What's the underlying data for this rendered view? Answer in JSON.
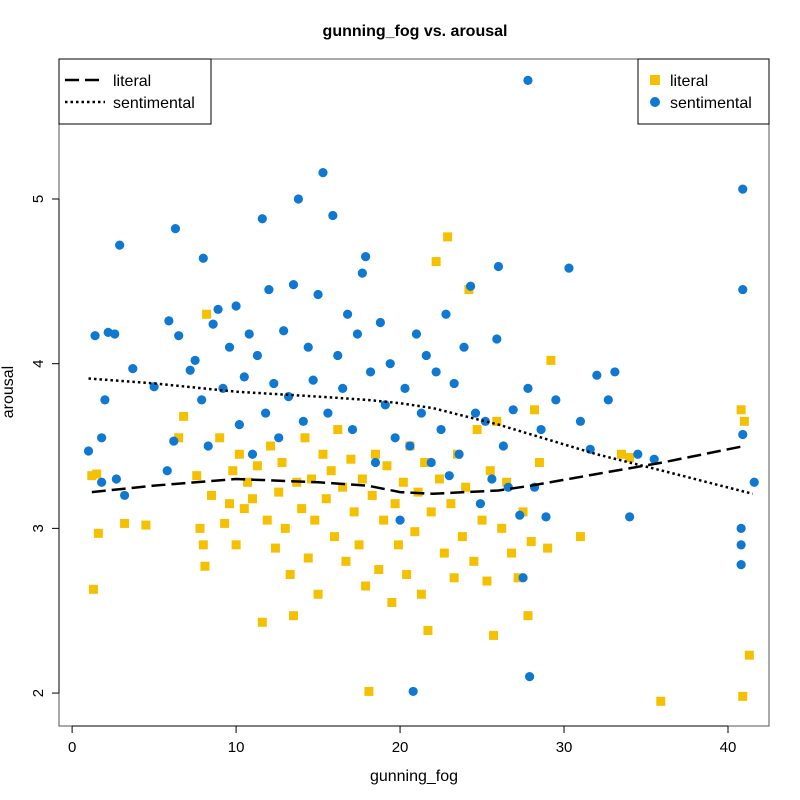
{
  "chart_data": {
    "type": "scatter",
    "title": "gunning_fog vs. arousal",
    "xlabel": "gunning_fog",
    "ylabel": "arousal",
    "xlim": [
      -0.8,
      42.5
    ],
    "ylim": [
      1.8,
      5.85
    ],
    "x_ticks": [
      0,
      10,
      20,
      30,
      40
    ],
    "y_ticks": [
      2,
      3,
      4,
      5
    ],
    "grid": false,
    "colors": {
      "literal": "#f5c000",
      "sentimental": "#0f78d2",
      "axis": "#000000",
      "frame": "#555555"
    },
    "legend_lines": {
      "placement": "top-left",
      "entries": [
        {
          "label": "literal",
          "style": "dashed"
        },
        {
          "label": "sentimental",
          "style": "dotted"
        }
      ]
    },
    "legend_points": {
      "placement": "top-right",
      "entries": [
        {
          "label": "literal",
          "marker": "square",
          "color": "#f5c000"
        },
        {
          "label": "sentimental",
          "marker": "circle",
          "color": "#0f78d2"
        }
      ]
    },
    "series": [
      {
        "name": "literal",
        "marker": "square",
        "color": "#f5c000",
        "points": [
          [
            1.2,
            3.32
          ],
          [
            1.3,
            2.63
          ],
          [
            1.5,
            3.33
          ],
          [
            1.6,
            2.97
          ],
          [
            3.2,
            3.03
          ],
          [
            4.5,
            3.02
          ],
          [
            6.5,
            3.55
          ],
          [
            6.8,
            3.68
          ],
          [
            7.6,
            3.32
          ],
          [
            7.8,
            3.0
          ],
          [
            8.0,
            2.9
          ],
          [
            8.1,
            2.77
          ],
          [
            8.2,
            4.3
          ],
          [
            8.5,
            3.2
          ],
          [
            9.0,
            3.55
          ],
          [
            9.3,
            3.03
          ],
          [
            9.6,
            3.15
          ],
          [
            9.8,
            3.35
          ],
          [
            10.0,
            2.9
          ],
          [
            10.2,
            3.45
          ],
          [
            10.5,
            3.12
          ],
          [
            10.7,
            3.28
          ],
          [
            11.0,
            3.18
          ],
          [
            11.3,
            3.38
          ],
          [
            11.6,
            2.43
          ],
          [
            11.9,
            3.05
          ],
          [
            12.1,
            3.5
          ],
          [
            12.4,
            2.88
          ],
          [
            12.6,
            3.22
          ],
          [
            12.8,
            3.4
          ],
          [
            13.0,
            3.0
          ],
          [
            13.3,
            2.72
          ],
          [
            13.5,
            2.47
          ],
          [
            13.7,
            3.28
          ],
          [
            14.0,
            3.12
          ],
          [
            14.2,
            3.55
          ],
          [
            14.4,
            2.82
          ],
          [
            14.6,
            3.3
          ],
          [
            14.8,
            3.05
          ],
          [
            15.0,
            2.6
          ],
          [
            15.3,
            3.45
          ],
          [
            15.5,
            3.18
          ],
          [
            15.8,
            3.35
          ],
          [
            16.0,
            2.95
          ],
          [
            16.2,
            3.6
          ],
          [
            16.5,
            3.25
          ],
          [
            16.7,
            2.8
          ],
          [
            17.0,
            3.42
          ],
          [
            17.2,
            3.1
          ],
          [
            17.5,
            2.9
          ],
          [
            17.7,
            3.3
          ],
          [
            17.9,
            2.65
          ],
          [
            18.1,
            2.01
          ],
          [
            18.3,
            3.2
          ],
          [
            18.5,
            3.45
          ],
          [
            18.7,
            2.75
          ],
          [
            19.0,
            3.05
          ],
          [
            19.2,
            3.38
          ],
          [
            19.5,
            2.55
          ],
          [
            19.7,
            3.15
          ],
          [
            19.9,
            2.9
          ],
          [
            20.2,
            3.28
          ],
          [
            20.4,
            2.72
          ],
          [
            20.6,
            3.5
          ],
          [
            20.9,
            2.98
          ],
          [
            21.1,
            3.22
          ],
          [
            21.3,
            2.6
          ],
          [
            21.5,
            3.4
          ],
          [
            21.7,
            2.38
          ],
          [
            21.9,
            3.1
          ],
          [
            22.2,
            4.62
          ],
          [
            22.4,
            3.3
          ],
          [
            22.7,
            2.85
          ],
          [
            22.9,
            4.77
          ],
          [
            23.1,
            3.15
          ],
          [
            23.3,
            2.7
          ],
          [
            23.5,
            3.45
          ],
          [
            23.8,
            2.95
          ],
          [
            24.0,
            3.25
          ],
          [
            24.2,
            4.45
          ],
          [
            24.5,
            2.8
          ],
          [
            24.7,
            3.6
          ],
          [
            25.0,
            3.05
          ],
          [
            25.3,
            2.68
          ],
          [
            25.5,
            3.35
          ],
          [
            25.7,
            2.35
          ],
          [
            25.9,
            3.65
          ],
          [
            26.2,
            3.0
          ],
          [
            26.5,
            3.28
          ],
          [
            26.8,
            2.85
          ],
          [
            27.2,
            2.7
          ],
          [
            27.5,
            3.1
          ],
          [
            27.8,
            2.47
          ],
          [
            28.0,
            2.92
          ],
          [
            28.2,
            3.72
          ],
          [
            28.5,
            3.4
          ],
          [
            29.0,
            2.88
          ],
          [
            29.2,
            4.02
          ],
          [
            31.0,
            2.95
          ],
          [
            33.5,
            3.45
          ],
          [
            34.0,
            3.43
          ],
          [
            35.9,
            1.95
          ],
          [
            40.8,
            3.72
          ],
          [
            40.9,
            1.98
          ],
          [
            41.0,
            3.65
          ],
          [
            41.3,
            2.23
          ]
        ]
      },
      {
        "name": "sentimental",
        "marker": "circle",
        "color": "#0f78d2",
        "points": [
          [
            1.0,
            3.47
          ],
          [
            1.4,
            4.17
          ],
          [
            1.8,
            3.28
          ],
          [
            1.8,
            3.55
          ],
          [
            2.0,
            3.78
          ],
          [
            2.2,
            4.19
          ],
          [
            2.6,
            4.18
          ],
          [
            2.7,
            3.3
          ],
          [
            2.9,
            4.72
          ],
          [
            3.2,
            3.2
          ],
          [
            3.7,
            3.97
          ],
          [
            5.0,
            3.86
          ],
          [
            5.8,
            3.35
          ],
          [
            5.9,
            4.26
          ],
          [
            6.2,
            3.53
          ],
          [
            6.3,
            4.82
          ],
          [
            6.5,
            4.17
          ],
          [
            7.2,
            3.96
          ],
          [
            7.5,
            4.02
          ],
          [
            7.9,
            3.78
          ],
          [
            8.0,
            4.64
          ],
          [
            8.3,
            3.5
          ],
          [
            8.6,
            4.24
          ],
          [
            8.9,
            4.33
          ],
          [
            9.2,
            3.85
          ],
          [
            9.6,
            4.1
          ],
          [
            10.0,
            4.35
          ],
          [
            10.2,
            3.63
          ],
          [
            10.5,
            3.92
          ],
          [
            10.8,
            4.18
          ],
          [
            11.0,
            3.45
          ],
          [
            11.3,
            4.05
          ],
          [
            11.6,
            4.88
          ],
          [
            11.8,
            3.7
          ],
          [
            12.0,
            4.45
          ],
          [
            12.3,
            3.88
          ],
          [
            12.6,
            3.55
          ],
          [
            12.9,
            4.2
          ],
          [
            13.2,
            3.8
          ],
          [
            13.5,
            4.48
          ],
          [
            13.8,
            5.0
          ],
          [
            14.1,
            3.65
          ],
          [
            14.4,
            4.1
          ],
          [
            14.7,
            3.9
          ],
          [
            15.0,
            4.42
          ],
          [
            15.3,
            5.16
          ],
          [
            15.6,
            3.7
          ],
          [
            15.9,
            4.9
          ],
          [
            16.2,
            4.05
          ],
          [
            16.5,
            3.85
          ],
          [
            16.8,
            4.3
          ],
          [
            17.1,
            3.6
          ],
          [
            17.4,
            4.18
          ],
          [
            17.7,
            4.55
          ],
          [
            17.9,
            4.65
          ],
          [
            18.2,
            3.95
          ],
          [
            18.5,
            3.4
          ],
          [
            18.8,
            4.25
          ],
          [
            19.1,
            3.75
          ],
          [
            19.4,
            4.0
          ],
          [
            19.7,
            3.55
          ],
          [
            20.0,
            3.05
          ],
          [
            20.3,
            3.85
          ],
          [
            20.6,
            3.5
          ],
          [
            20.8,
            2.01
          ],
          [
            21.0,
            4.18
          ],
          [
            21.3,
            3.7
          ],
          [
            21.6,
            4.05
          ],
          [
            21.9,
            3.4
          ],
          [
            22.2,
            3.95
          ],
          [
            22.5,
            3.6
          ],
          [
            22.8,
            4.3
          ],
          [
            23.0,
            3.32
          ],
          [
            23.3,
            3.88
          ],
          [
            23.6,
            3.45
          ],
          [
            23.9,
            4.1
          ],
          [
            24.3,
            4.47
          ],
          [
            24.6,
            3.7
          ],
          [
            24.9,
            3.15
          ],
          [
            25.2,
            3.65
          ],
          [
            25.6,
            3.3
          ],
          [
            25.9,
            4.15
          ],
          [
            26.0,
            4.59
          ],
          [
            26.3,
            3.5
          ],
          [
            26.6,
            3.25
          ],
          [
            26.9,
            3.72
          ],
          [
            27.3,
            3.08
          ],
          [
            27.5,
            2.7
          ],
          [
            27.8,
            3.85
          ],
          [
            27.8,
            5.72
          ],
          [
            27.9,
            2.1
          ],
          [
            28.2,
            3.25
          ],
          [
            28.6,
            3.6
          ],
          [
            28.9,
            3.07
          ],
          [
            29.5,
            3.78
          ],
          [
            30.3,
            4.58
          ],
          [
            31.0,
            3.65
          ],
          [
            31.6,
            3.48
          ],
          [
            32.0,
            3.93
          ],
          [
            32.7,
            3.78
          ],
          [
            33.1,
            3.95
          ],
          [
            34.0,
            3.07
          ],
          [
            34.5,
            3.45
          ],
          [
            35.5,
            3.42
          ],
          [
            40.8,
            3.0
          ],
          [
            40.8,
            2.9
          ],
          [
            40.8,
            2.78
          ],
          [
            40.9,
            3.57
          ],
          [
            40.9,
            4.45
          ],
          [
            40.9,
            5.06
          ],
          [
            41.6,
            3.28
          ]
        ]
      }
    ],
    "trend_lines": [
      {
        "name": "literal",
        "style": "dashed",
        "points": [
          [
            1.2,
            3.22
          ],
          [
            5,
            3.26
          ],
          [
            10,
            3.3
          ],
          [
            15,
            3.28
          ],
          [
            18,
            3.26
          ],
          [
            20,
            3.22
          ],
          [
            22,
            3.21
          ],
          [
            24,
            3.22
          ],
          [
            26,
            3.23
          ],
          [
            28,
            3.26
          ],
          [
            32,
            3.33
          ],
          [
            36,
            3.4
          ],
          [
            41,
            3.5
          ]
        ]
      },
      {
        "name": "sentimental",
        "style": "dotted",
        "points": [
          [
            1,
            3.91
          ],
          [
            5,
            3.88
          ],
          [
            10,
            3.83
          ],
          [
            15,
            3.8
          ],
          [
            18,
            3.78
          ],
          [
            20,
            3.76
          ],
          [
            22,
            3.73
          ],
          [
            24,
            3.68
          ],
          [
            26,
            3.63
          ],
          [
            28,
            3.57
          ],
          [
            32,
            3.45
          ],
          [
            36,
            3.35
          ],
          [
            41.5,
            3.21
          ]
        ]
      }
    ]
  }
}
